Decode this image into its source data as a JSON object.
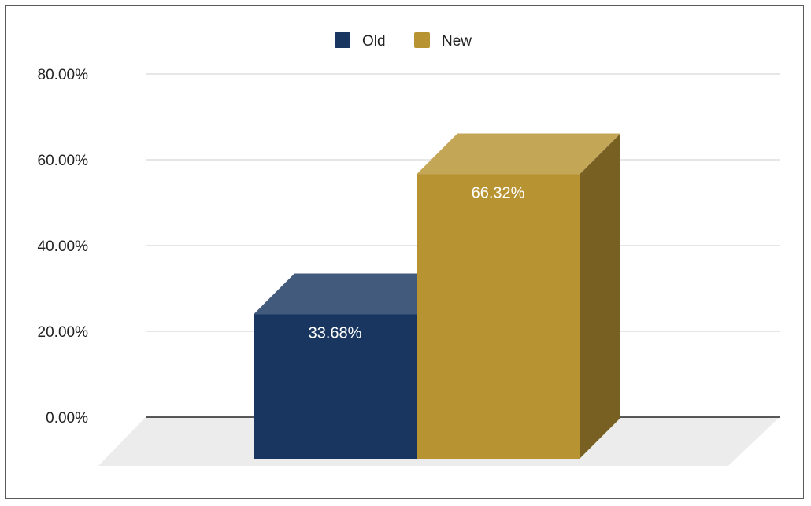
{
  "chart_data": {
    "type": "bar",
    "style": "3d",
    "categories": [
      ""
    ],
    "series": [
      {
        "name": "Old",
        "values": [
          33.68
        ],
        "color": "#18365f",
        "label": "33.68%"
      },
      {
        "name": "New",
        "values": [
          66.32
        ],
        "color": "#b79332",
        "label": "66.32%"
      }
    ],
    "yticks": [
      "0.00%",
      "20.00%",
      "40.00%",
      "60.00%",
      "80.00%"
    ],
    "ylim": [
      0,
      80
    ],
    "grid": true,
    "legend_position": "top-center",
    "title": "",
    "xlabel": "",
    "ylabel": ""
  }
}
